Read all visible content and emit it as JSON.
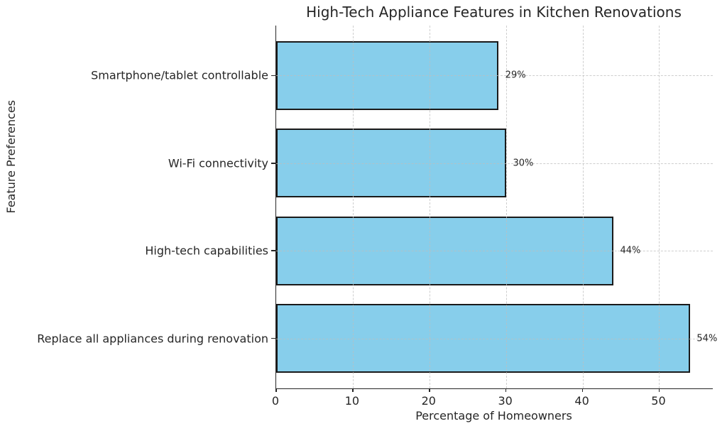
{
  "chart_data": {
    "type": "bar",
    "orientation": "horizontal",
    "title": "High-Tech Appliance Features in Kitchen Renovations",
    "xlabel": "Percentage of Homeowners",
    "ylabel": "Feature Preferences",
    "categories": [
      "Smartphone/tablet controllable",
      "Wi-Fi connectivity",
      "High-tech capabilities",
      "Replace all appliances during renovation"
    ],
    "values": [
      29,
      30,
      44,
      54
    ],
    "value_labels": [
      "29%",
      "30%",
      "44%",
      "54%"
    ],
    "xticks": [
      0,
      10,
      20,
      30,
      40,
      50
    ],
    "xlim": [
      0,
      57
    ],
    "grid": "dashed",
    "legend": "none",
    "bar_color": "#87CEEB",
    "bar_edge_color": "#1a1a1a",
    "grid_color": "#bebebe",
    "text_color": "#262626"
  }
}
